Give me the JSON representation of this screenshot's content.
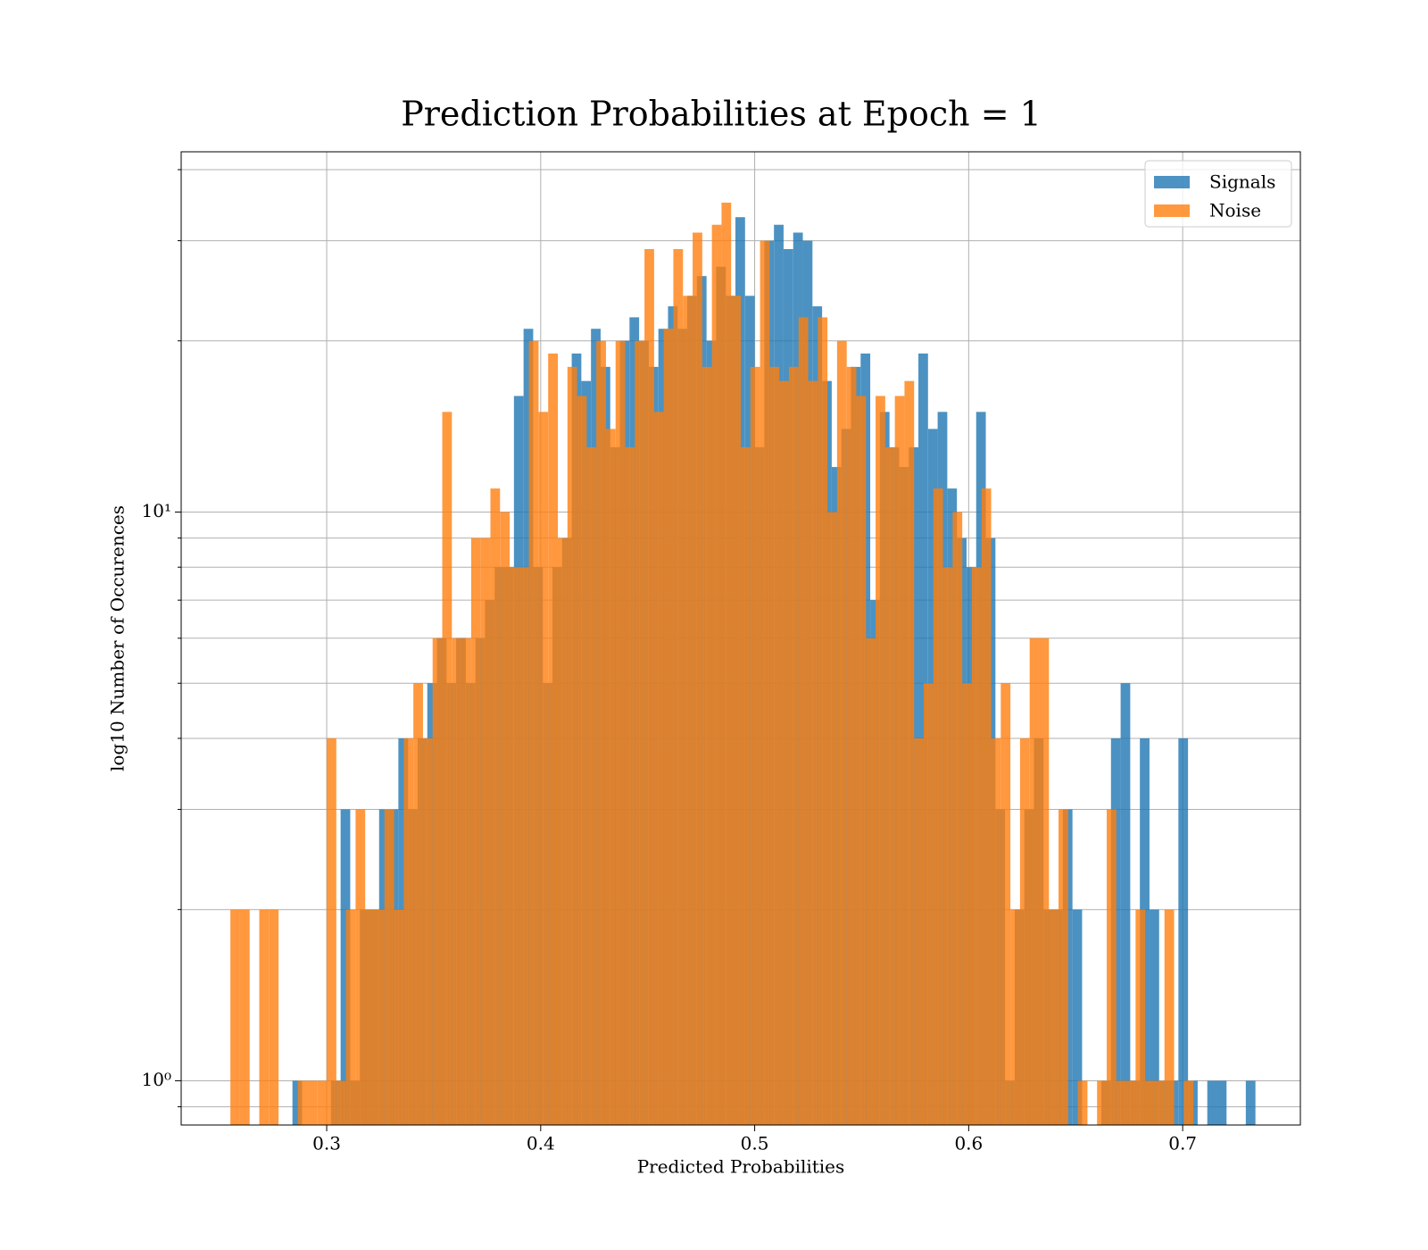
{
  "chart_data": {
    "type": "histogram",
    "title": "Prediction Probabilities at Epoch = 1",
    "x_label": "Predicted Probabilities",
    "y_label": "log10 Number of Occurences",
    "xlim": [
      0.232,
      0.755
    ],
    "ylim": [
      0.836,
      43
    ],
    "log_y": true,
    "grid": true,
    "legend": "upper right",
    "xticks": [
      0.3,
      0.4,
      0.5,
      0.6,
      0.7
    ],
    "yticks": [
      {
        "value": 1,
        "label": "10⁰"
      },
      {
        "value": 10,
        "label": "10¹"
      }
    ],
    "yminorticks": [
      0.9,
      2,
      3,
      4,
      5,
      6,
      7,
      8,
      9,
      20,
      30,
      40
    ],
    "series": [
      {
        "name": "Signals",
        "color": "#1f77b4",
        "bins": [
          0.284,
          0.2885,
          0.293,
          0.2975,
          0.302,
          0.3065,
          0.311,
          0.3155,
          0.32,
          0.3245,
          0.329,
          0.3335,
          0.338,
          0.3425,
          0.347,
          0.3515,
          0.356,
          0.3605,
          0.365,
          0.3695,
          0.374,
          0.3785,
          0.383,
          0.3875,
          0.392,
          0.3965,
          0.401,
          0.4055,
          0.41,
          0.4145,
          0.419,
          0.4235,
          0.428,
          0.4325,
          0.437,
          0.4415,
          0.446,
          0.4505,
          0.455,
          0.4595,
          0.464,
          0.4685,
          0.473,
          0.4775,
          0.482,
          0.4865,
          0.491,
          0.4955,
          0.5,
          0.5045,
          0.509,
          0.5135,
          0.518,
          0.5225,
          0.527,
          0.5315,
          0.536,
          0.5405,
          0.545,
          0.5495,
          0.554,
          0.5585,
          0.563,
          0.5675,
          0.572,
          0.5765,
          0.581,
          0.5855,
          0.59,
          0.5945,
          0.599,
          0.6035,
          0.608,
          0.6125,
          0.617,
          0.6215,
          0.626,
          0.6305,
          0.635,
          0.6395,
          0.644,
          0.6485,
          0.653,
          0.6575,
          0.662,
          0.6665,
          0.671,
          0.6755,
          0.68,
          0.6845,
          0.689,
          0.6935,
          0.698,
          0.7025,
          0.707,
          0.7115,
          0.716,
          0.7205,
          0.725,
          0.7295,
          0.734
        ],
        "values": [
          1,
          0,
          0,
          0,
          1,
          3,
          1,
          2,
          2,
          3,
          3,
          4,
          3,
          4,
          5,
          6,
          5,
          6,
          5,
          6,
          7,
          8,
          8,
          16,
          21,
          8,
          5,
          8,
          9,
          19,
          17,
          21,
          18,
          13,
          20,
          22,
          20,
          18,
          21,
          23,
          21,
          24,
          26,
          20,
          27,
          24,
          33,
          24,
          13,
          30,
          32,
          29,
          31,
          30,
          23,
          17,
          12,
          14,
          18,
          19,
          7,
          15,
          13,
          12,
          13,
          19,
          14,
          15,
          11,
          9,
          8,
          15,
          9,
          3,
          1,
          2,
          3,
          4,
          2,
          2,
          3,
          2,
          0,
          0,
          1,
          4,
          5,
          1,
          4,
          2,
          1,
          1,
          4,
          1,
          0,
          1,
          1,
          0,
          0,
          1
        ]
      },
      {
        "name": "Noise",
        "color": "#ff7f0e",
        "bins": [
          0.255,
          0.2595,
          0.264,
          0.2685,
          0.273,
          0.2775,
          0.282,
          0.2865,
          0.291,
          0.2955,
          0.3,
          0.3045,
          0.309,
          0.3135,
          0.318,
          0.3225,
          0.327,
          0.3315,
          0.336,
          0.3405,
          0.345,
          0.3495,
          0.354,
          0.3585,
          0.363,
          0.3675,
          0.372,
          0.3765,
          0.381,
          0.3855,
          0.39,
          0.3945,
          0.399,
          0.4035,
          0.408,
          0.4125,
          0.417,
          0.4215,
          0.426,
          0.4305,
          0.435,
          0.4395,
          0.444,
          0.4485,
          0.453,
          0.4575,
          0.462,
          0.4665,
          0.471,
          0.4755,
          0.48,
          0.4845,
          0.489,
          0.4935,
          0.498,
          0.5025,
          0.507,
          0.5115,
          0.516,
          0.5205,
          0.525,
          0.5295,
          0.534,
          0.5385,
          0.543,
          0.5475,
          0.552,
          0.5565,
          0.561,
          0.5655,
          0.57,
          0.5745,
          0.579,
          0.5835,
          0.588,
          0.5925,
          0.597,
          0.6015,
          0.606,
          0.6105,
          0.615,
          0.6195,
          0.624,
          0.6285,
          0.633,
          0.6375,
          0.642,
          0.6465,
          0.651,
          0.6555,
          0.66,
          0.6645,
          0.669,
          0.6735,
          0.678,
          0.6825,
          0.687,
          0.6915,
          0.696,
          0.7005,
          0.705
        ],
        "values": [
          2,
          2,
          0,
          2,
          2,
          0,
          0,
          1,
          1,
          1,
          4,
          1,
          2,
          3,
          2,
          2,
          3,
          2,
          4,
          5,
          4,
          6,
          15,
          6,
          6,
          9,
          9,
          11,
          10,
          8,
          8,
          20,
          15,
          19,
          9,
          18,
          16,
          13,
          20,
          14,
          20,
          13,
          20,
          29,
          15,
          21,
          29,
          24,
          31,
          18,
          32,
          35,
          24,
          13,
          18,
          30,
          18,
          17,
          18,
          22,
          17,
          22,
          10,
          20,
          18,
          16,
          6,
          16,
          13,
          16,
          17,
          4,
          5,
          11,
          8,
          10,
          5,
          8,
          11,
          4,
          5,
          2,
          4,
          6,
          6,
          2,
          3,
          0,
          1,
          0,
          1,
          3,
          1,
          1,
          2,
          1,
          1,
          2,
          0,
          1
        ]
      }
    ]
  }
}
